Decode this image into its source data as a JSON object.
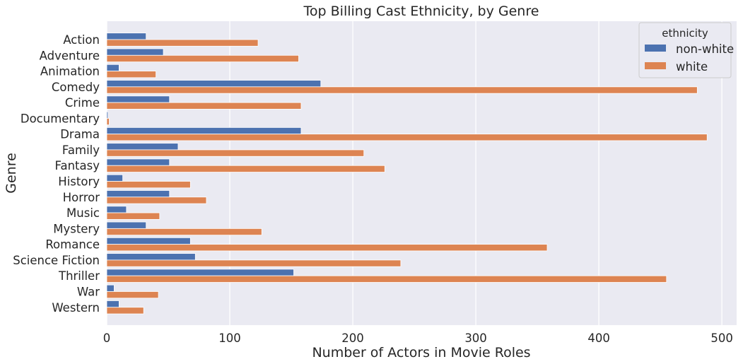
{
  "chart_data": {
    "type": "bar",
    "orientation": "horizontal",
    "title": "Top Billing Cast Ethnicity, by Genre",
    "xlabel": "Number of Actors in Movie Roles",
    "ylabel": "Genre",
    "xlim": [
      0,
      512
    ],
    "xticks": [
      0,
      100,
      200,
      300,
      400,
      500
    ],
    "grid": true,
    "legend": {
      "title": "ethnicity",
      "position": "top-right"
    },
    "categories": [
      "Action",
      "Adventure",
      "Animation",
      "Comedy",
      "Crime",
      "Documentary",
      "Drama",
      "Family",
      "Fantasy",
      "History",
      "Horror",
      "Music",
      "Mystery",
      "Romance",
      "Science Fiction",
      "Thriller",
      "War",
      "Western"
    ],
    "series": [
      {
        "name": "non-white",
        "color": "#4c72b0",
        "values": [
          32,
          46,
          10,
          174,
          51,
          1,
          158,
          58,
          51,
          13,
          51,
          16,
          32,
          68,
          72,
          152,
          6,
          10
        ]
      },
      {
        "name": "white",
        "color": "#dd8452",
        "values": [
          123,
          156,
          40,
          480,
          158,
          2,
          488,
          209,
          226,
          68,
          81,
          43,
          126,
          358,
          239,
          455,
          42,
          30
        ]
      }
    ]
  }
}
